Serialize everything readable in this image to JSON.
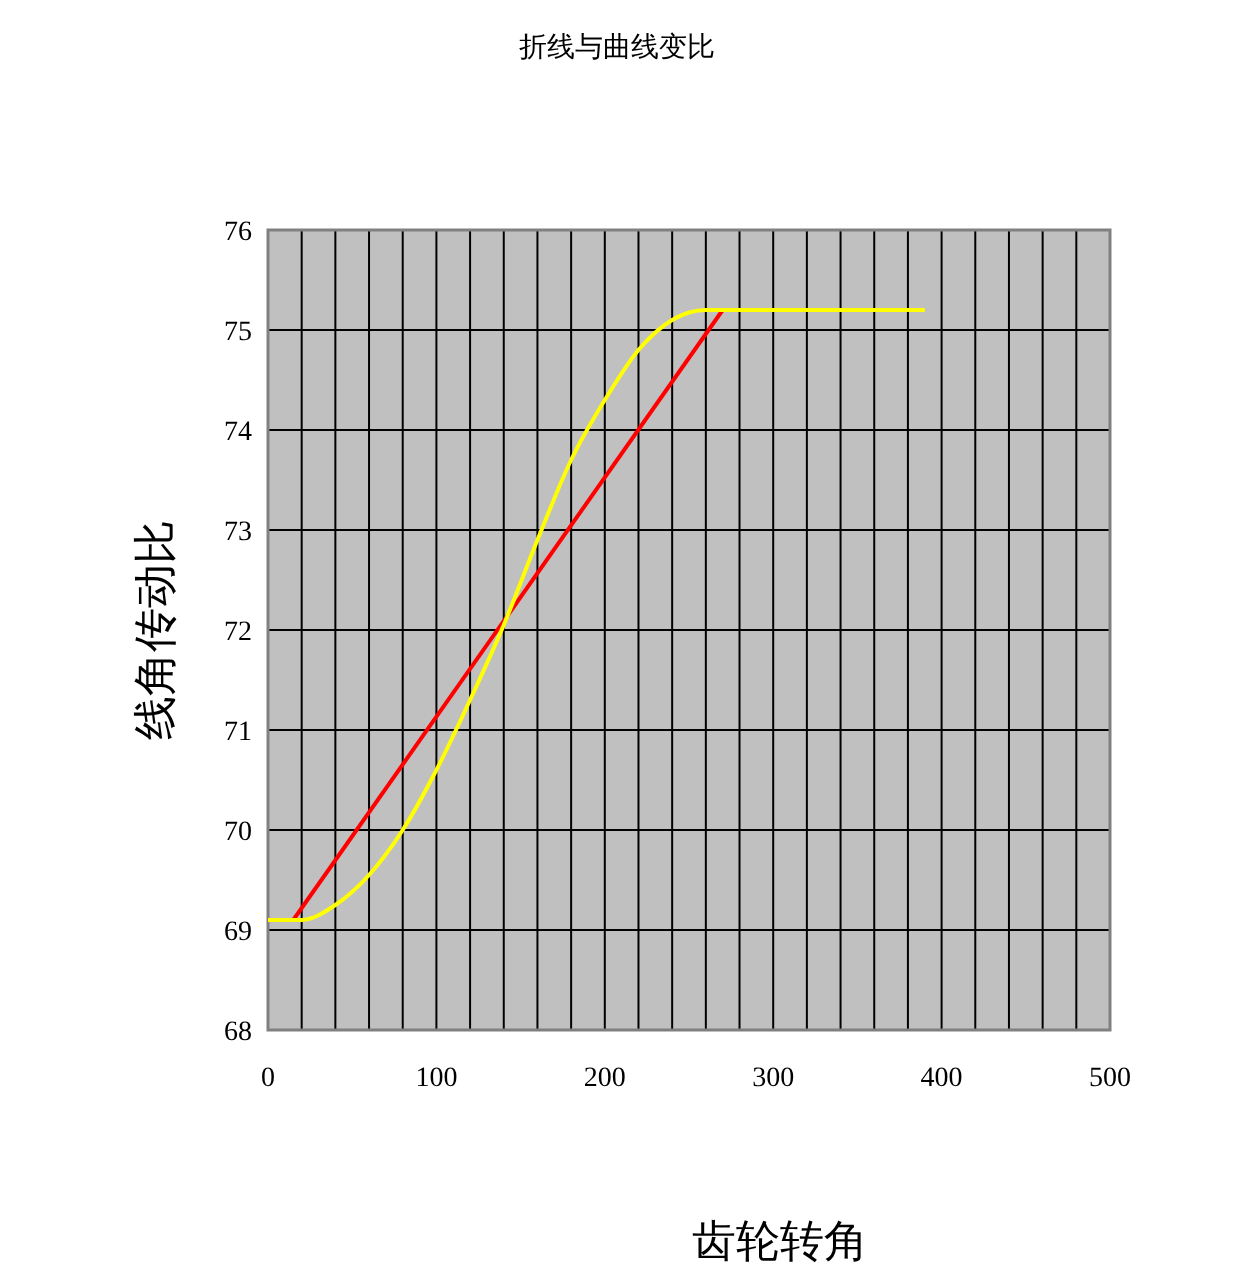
{
  "chart_data": {
    "type": "line",
    "title": "折线与曲线变比",
    "xlabel": "齿轮转角",
    "ylabel": "线角传动比",
    "series": [
      {
        "color": "#ff0000",
        "x": [
          15,
          270
        ],
        "values": [
          69.1,
          75.2
        ]
      },
      {
        "color": "#ffff00",
        "x": [
          0,
          20,
          40,
          60,
          80,
          100,
          120,
          140,
          160,
          180,
          200,
          220,
          240,
          260,
          390
        ],
        "values": [
          69.1,
          69.1,
          69.25,
          69.55,
          70.0,
          70.6,
          71.3,
          72.05,
          72.9,
          73.7,
          74.3,
          74.8,
          75.1,
          75.2,
          75.2
        ]
      }
    ],
    "xlim": [
      0,
      500
    ],
    "xticks": [
      0,
      {
        "value": 20,
        "label": null
      },
      {
        "value": 40,
        "label": null
      },
      {
        "value": 60,
        "label": null
      },
      {
        "value": 80,
        "label": null
      },
      100,
      {
        "value": 120,
        "label": null
      },
      {
        "value": 140,
        "label": null
      },
      {
        "value": 160,
        "label": null
      },
      {
        "value": 180,
        "label": null
      },
      200,
      {
        "value": 220,
        "label": null
      },
      {
        "value": 240,
        "label": null
      },
      {
        "value": 260,
        "label": null
      },
      {
        "value": 280,
        "label": null
      },
      300,
      {
        "value": 320,
        "label": null
      },
      {
        "value": 340,
        "label": null
      },
      {
        "value": 360,
        "label": null
      },
      {
        "value": 380,
        "label": null
      },
      400,
      {
        "value": 420,
        "label": null
      },
      {
        "value": 440,
        "label": null
      },
      {
        "value": 460,
        "label": null
      },
      {
        "value": 480,
        "label": null
      },
      500
    ],
    "ylim": [
      68,
      76
    ],
    "yticks": [
      68,
      69,
      70,
      71,
      72,
      73,
      74,
      75,
      76
    ],
    "grid": true,
    "marker": "none",
    "line_style": "solid"
  }
}
